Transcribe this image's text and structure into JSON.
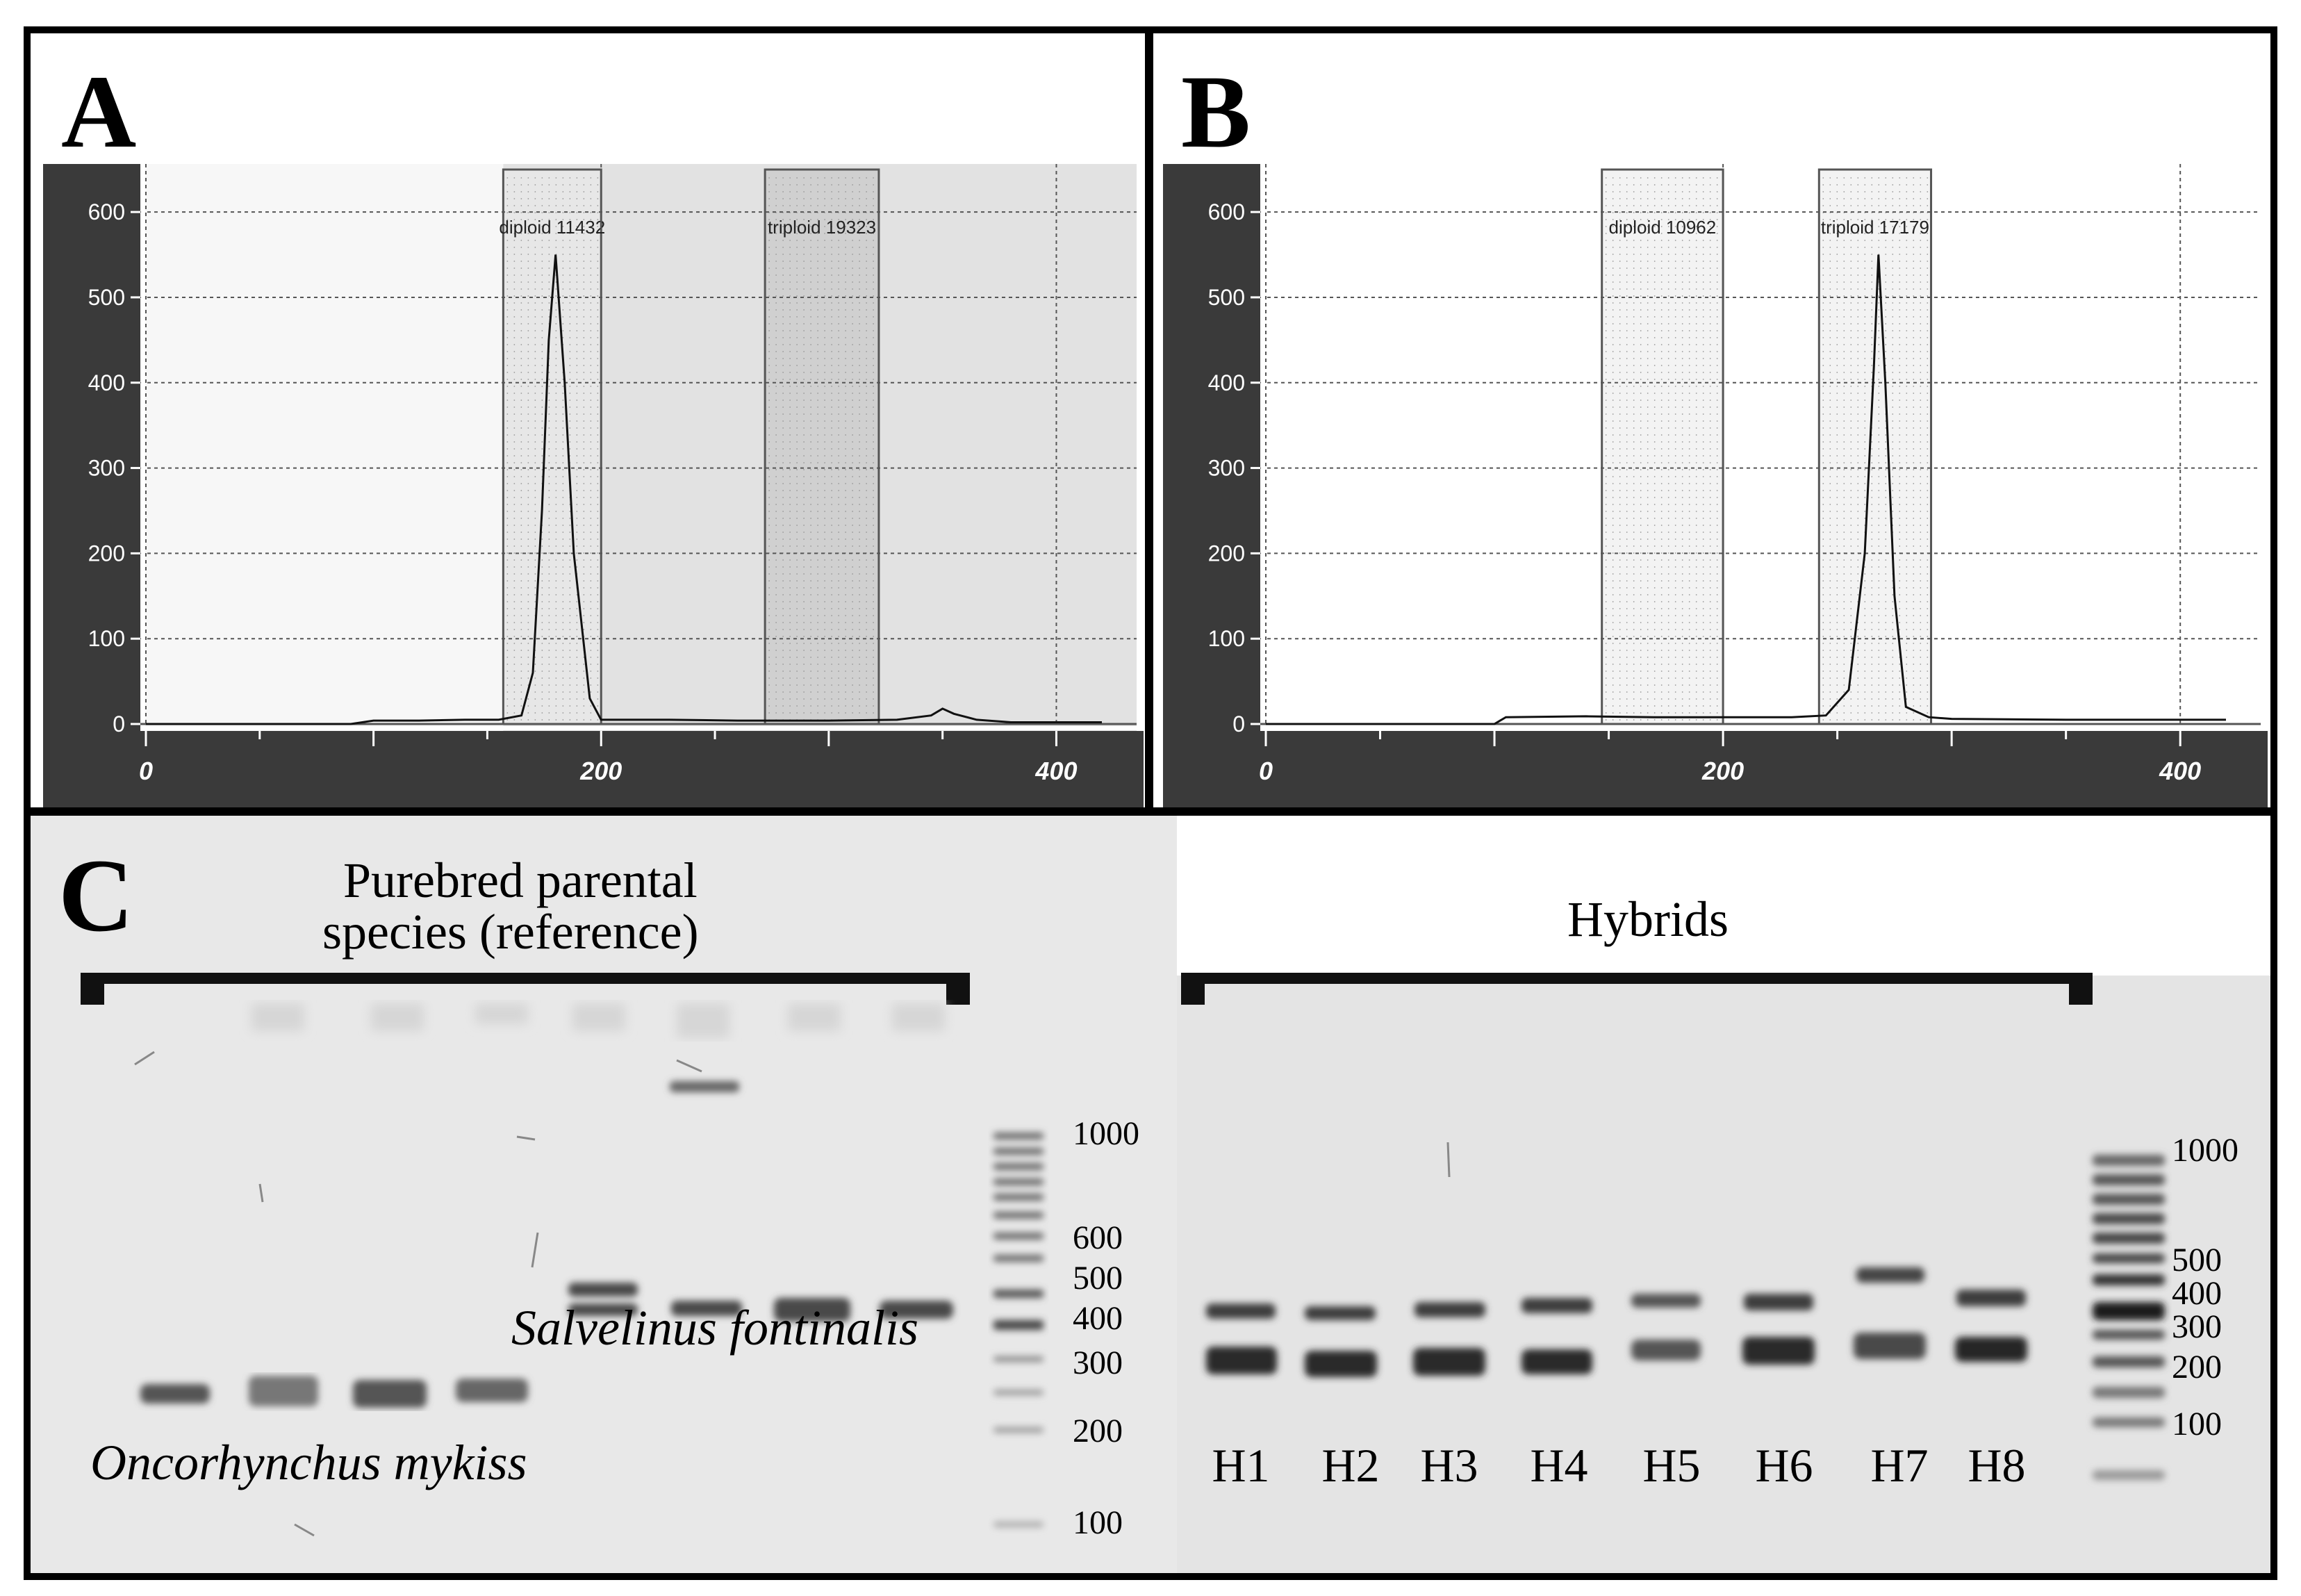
{
  "panel_a": {
    "letter": "A",
    "gate_labels": [
      "diploid 11432",
      "triploid 19323"
    ]
  },
  "panel_b": {
    "letter": "B",
    "gate_labels": [
      "diploid 10962",
      "triploid 17179"
    ]
  },
  "panel_c": {
    "letter": "C",
    "parental_header": [
      "Purebred parental",
      "species (reference)"
    ],
    "hybrids_header": "Hybrids",
    "species_1": "Oncorhynchus mykiss",
    "species_2": "Salvelinus fontinalis",
    "ladder_left": [
      "1000",
      "600",
      "500",
      "400",
      "300",
      "200",
      "100"
    ],
    "ladder_right": [
      "1000",
      "500",
      "400",
      "300",
      "200",
      "100"
    ],
    "hybrid_lanes": [
      "H1",
      "H2",
      "H3",
      "H4",
      "H5",
      "H6",
      "H7",
      "H8"
    ]
  },
  "colors": {
    "axis_dark": "#3a3a3a",
    "gel_bg": "#e6e6e6",
    "band": "#3c3c3c",
    "gate_fill": "#d8d8d8"
  },
  "chart_data": [
    {
      "type": "line",
      "panel": "A",
      "x": [
        0,
        90,
        100,
        120,
        140,
        155,
        165,
        170,
        174,
        177,
        180,
        184,
        188,
        195,
        200,
        230,
        260,
        300,
        330,
        345,
        350,
        355,
        365,
        380,
        420
      ],
      "y": [
        0,
        0,
        4,
        4,
        5,
        5,
        10,
        60,
        250,
        450,
        550,
        400,
        200,
        30,
        5,
        5,
        4,
        4,
        5,
        10,
        18,
        12,
        5,
        2,
        2
      ],
      "xlim": [
        0,
        420
      ],
      "ylim": [
        0,
        640
      ],
      "x_ticks": [
        "0",
        "200",
        "400"
      ],
      "y_ticks": [
        "0",
        "100",
        "200",
        "300",
        "400",
        "500",
        "600"
      ],
      "gates": [
        {
          "label": "diploid 11432",
          "x0": 157,
          "x1": 200
        },
        {
          "label": "triploid 19323",
          "x0": 272,
          "x1": 322
        }
      ],
      "grid": true
    },
    {
      "type": "line",
      "panel": "B",
      "x": [
        0,
        100,
        105,
        140,
        170,
        200,
        230,
        245,
        255,
        262,
        266,
        268,
        271,
        275,
        280,
        290,
        300,
        350,
        420
      ],
      "y": [
        0,
        0,
        8,
        9,
        8,
        8,
        8,
        10,
        40,
        200,
        420,
        550,
        400,
        150,
        20,
        8,
        6,
        5,
        5
      ],
      "xlim": [
        0,
        420
      ],
      "ylim": [
        0,
        640
      ],
      "x_ticks": [
        "0",
        "200",
        "400"
      ],
      "y_ticks": [
        "0",
        "100",
        "200",
        "300",
        "400",
        "500",
        "600"
      ],
      "gates": [
        {
          "label": "diploid 10962",
          "x0": 147,
          "x1": 200
        },
        {
          "label": "triploid 17179",
          "x0": 242,
          "x1": 291
        }
      ],
      "grid": true
    }
  ]
}
